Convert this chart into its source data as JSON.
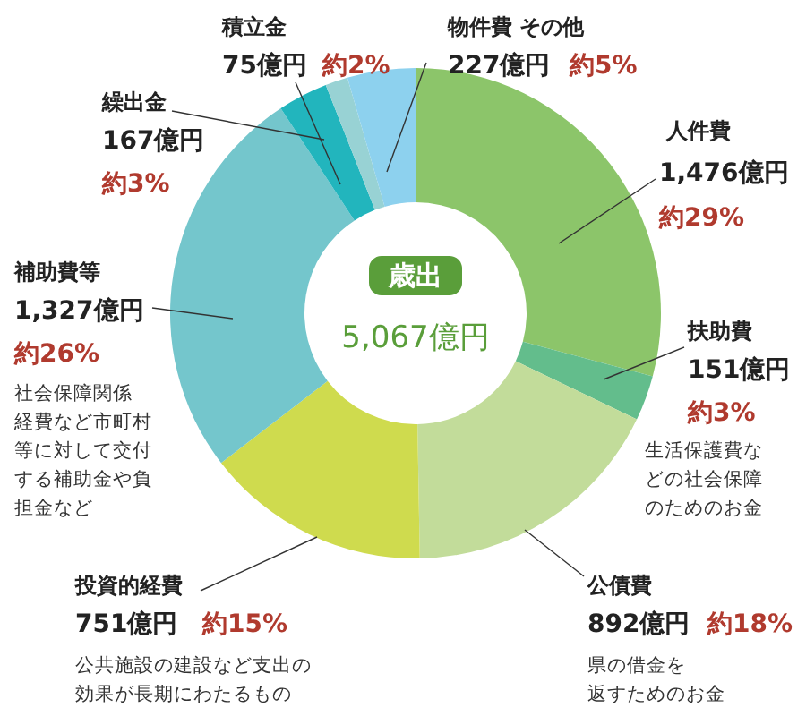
{
  "chart_data": {
    "type": "donut",
    "title": "歳出",
    "subtitle": "5,067億円",
    "categories": [
      "人件費",
      "扶助費",
      "公債費",
      "投資的経費",
      "補助費等",
      "繰出金",
      "積立金",
      "物件費 その他"
    ],
    "values": [
      1476,
      151,
      892,
      751,
      1327,
      167,
      75,
      227
    ],
    "colors": [
      "#8cc56a",
      "#63bd8c",
      "#c2dc9a",
      "#cfdb4e",
      "#74c6cc",
      "#22b5bd",
      "#98d2d4",
      "#8dd1ee"
    ],
    "value_labels": [
      "1,476億円",
      "151億円",
      "892億円",
      "751億円",
      "1,327億円",
      "167億円",
      "75億円",
      "227億円"
    ],
    "annotations": [
      "約29%",
      "約3%",
      "約18%",
      "約15%",
      "約26%",
      "約3%",
      "約2%",
      "約5%",
      "生活保護費などの社会保障のためのお金",
      "県の借金を返すためのお金",
      "公共施設の建設など支出の効果が長期にわたるもの",
      "社会保障関係経費など市町村等に対して交付する補助金や負担金など"
    ]
  }
}
